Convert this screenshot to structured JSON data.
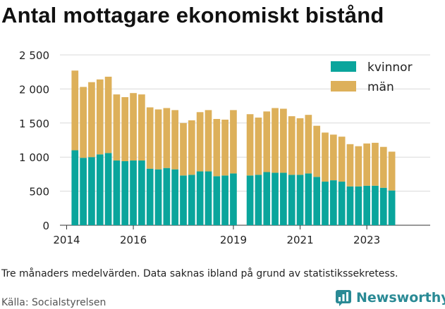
{
  "title": "Antal mottagare ekonomiskt bistånd",
  "note": "Tre månaders medelvärden. Data saknas ibland på grund av statistikssekretess.",
  "source": "Källa: Socialstyrelsen",
  "brand": "Newsworthy",
  "colors": {
    "women": "#0aa59c",
    "men": "#ddb05a",
    "grid": "#d9d9d9",
    "brand": "#2a8a95"
  },
  "chart_data": {
    "type": "bar",
    "stacked": true,
    "ylim": [
      0,
      2500
    ],
    "yticks": [
      0,
      500,
      1000,
      1500,
      2000,
      2500
    ],
    "ytick_labels": [
      "0",
      "500",
      "1 000",
      "1 500",
      "2 000",
      "2 500"
    ],
    "xticks": [
      2014,
      2016,
      2019,
      2021,
      2023
    ],
    "xtick_labels": [
      "2014",
      "2016",
      "2019",
      "2021",
      "2023"
    ],
    "xlim": [
      2013.8,
      2024.9
    ],
    "legend": "top-right",
    "series": [
      {
        "name": "kvinnor",
        "color": "#0aa59c",
        "values": [
          1100,
          990,
          1000,
          1040,
          1060,
          950,
          940,
          950,
          950,
          830,
          820,
          840,
          820,
          730,
          740,
          790,
          790,
          720,
          730,
          760,
          null,
          730,
          740,
          780,
          770,
          770,
          740,
          740,
          760,
          710,
          640,
          660,
          640,
          570,
          570,
          580,
          580,
          550,
          510
        ]
      },
      {
        "name": "män",
        "color": "#ddb05a",
        "values": [
          1170,
          1040,
          1100,
          1100,
          1120,
          970,
          940,
          990,
          970,
          900,
          880,
          880,
          870,
          770,
          800,
          870,
          900,
          840,
          820,
          930,
          null,
          900,
          840,
          890,
          950,
          940,
          860,
          830,
          860,
          750,
          720,
          670,
          660,
          620,
          590,
          620,
          630,
          600,
          570
        ]
      }
    ],
    "x": [
      2014.25,
      2014.5,
      2014.75,
      2015.0,
      2015.25,
      2015.5,
      2015.75,
      2016.0,
      2016.25,
      2016.5,
      2016.75,
      2017.0,
      2017.25,
      2017.5,
      2017.75,
      2018.0,
      2018.25,
      2018.5,
      2018.75,
      2019.0,
      2019.25,
      2019.5,
      2019.75,
      2020.0,
      2020.25,
      2020.5,
      2020.75,
      2021.0,
      2021.25,
      2021.5,
      2021.75,
      2022.0,
      2022.25,
      2022.5,
      2022.75,
      2023.0,
      2023.25,
      2023.5,
      2023.75
    ]
  }
}
